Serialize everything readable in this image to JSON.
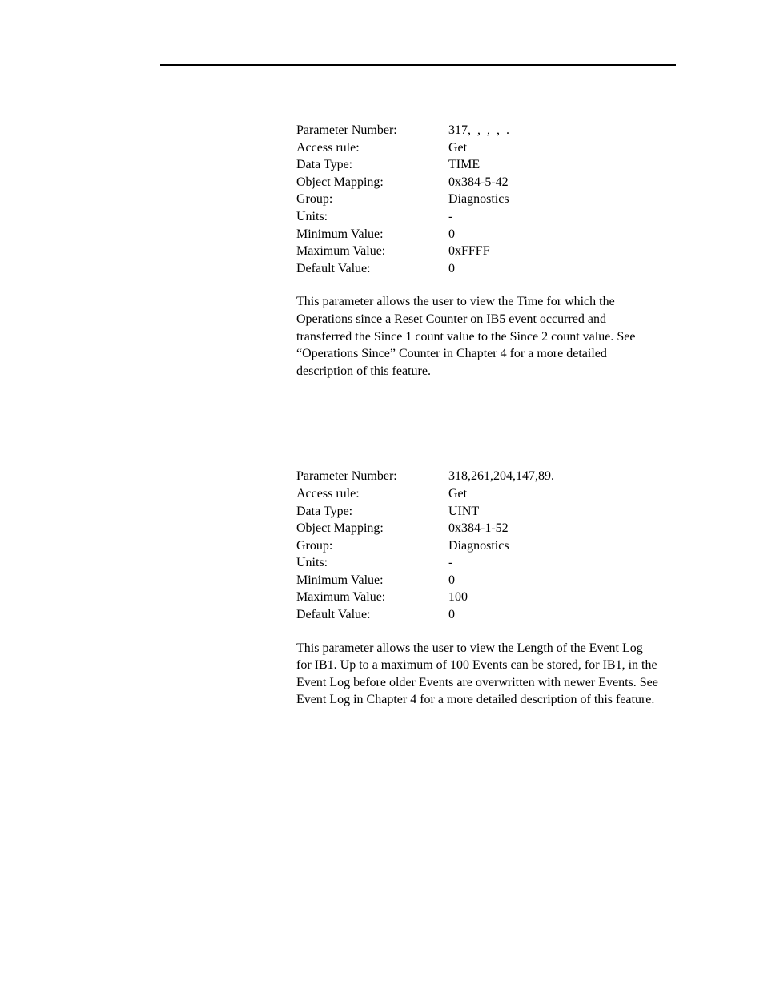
{
  "section1": {
    "rows": [
      {
        "label": "Parameter Number:",
        "value": "317,_,_,_,_."
      },
      {
        "label": "Access rule:",
        "value": "Get"
      },
      {
        "label": "Data Type:",
        "value": "TIME"
      },
      {
        "label": "Object Mapping:",
        "value": "0x384-5-42"
      },
      {
        "label": "Group:",
        "value": "Diagnostics"
      },
      {
        "label": "Units:",
        "value": "-"
      },
      {
        "label": "Minimum Value:",
        "value": "0"
      },
      {
        "label": "Maximum Value:",
        "value": "0xFFFF"
      },
      {
        "label": "Default Value:",
        "value": "0"
      }
    ],
    "description": "This parameter allows the user to view the Time for which the Operations since a Reset Counter on IB5 event occurred and transferred the Since 1 count value to the Since 2 count value. See “Operations Since” Counter in Chapter 4 for a more detailed description of this feature."
  },
  "section2": {
    "rows": [
      {
        "label": "Parameter Number:",
        "value": "318,261,204,147,89."
      },
      {
        "label": "Access rule:",
        "value": "Get"
      },
      {
        "label": "Data Type:",
        "value": "UINT"
      },
      {
        "label": "Object Mapping:",
        "value": "0x384-1-52"
      },
      {
        "label": "Group:",
        "value": "Diagnostics"
      },
      {
        "label": "Units:",
        "value": "-"
      },
      {
        "label": "Minimum Value:",
        "value": "0"
      },
      {
        "label": "Maximum Value:",
        "value": "100"
      },
      {
        "label": "Default Value:",
        "value": "0"
      }
    ],
    "description": "This parameter allows the user to view the Length of the Event Log for IB1.  Up to a maximum of 100 Events can be stored, for IB1, in the Event Log before older Events are overwritten with newer Events.  See Event Log in Chapter 4 for a more detailed description of this feature."
  }
}
